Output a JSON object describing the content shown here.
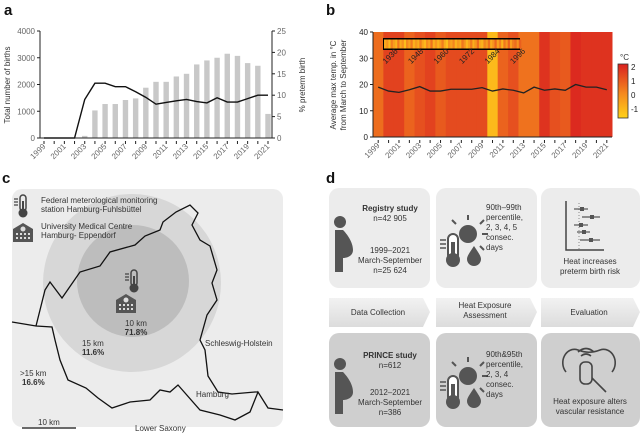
{
  "panels": {
    "a": "a",
    "b": "b",
    "c": "c",
    "d": "d"
  },
  "chart_data": [
    {
      "type": "bar",
      "title": "",
      "xlabel": "",
      "ylabel": "Total number of births",
      "y2label": "% preterm birth",
      "categories": [
        "1999",
        "2000",
        "2001",
        "2002",
        "2003",
        "2004",
        "2005",
        "2006",
        "2007",
        "2008",
        "2009",
        "2010",
        "2011",
        "2012",
        "2013",
        "2014",
        "2015",
        "2016",
        "2017",
        "2018",
        "2019",
        "2020",
        "2021"
      ],
      "x_tick_labels": [
        "1999",
        "2001",
        "2003",
        "2005",
        "2007",
        "2009",
        "2011",
        "2013",
        "2015",
        "2017",
        "2019",
        "2021"
      ],
      "ylim": [
        0,
        4000
      ],
      "yticks": [
        "0",
        "1000",
        "2000",
        "3000",
        "4000"
      ],
      "y2lim": [
        0,
        25
      ],
      "y2ticks": [
        "0",
        "5",
        "10",
        "15",
        "20",
        "25"
      ],
      "series": [
        {
          "name": "Total number of births",
          "type": "bar",
          "color": "#c8c8c8",
          "values": [
            0,
            0,
            0,
            0,
            80,
            1030,
            1270,
            1270,
            1420,
            1480,
            1880,
            2100,
            2100,
            2300,
            2400,
            2750,
            2900,
            3000,
            3150,
            3070,
            2800,
            2700,
            900
          ]
        },
        {
          "name": "% preterm birth",
          "type": "line",
          "axis": "right",
          "color": "#111111",
          "values": [
            0,
            0,
            0,
            0,
            9,
            12.8,
            12.8,
            12,
            12,
            10.8,
            9.5,
            7.9,
            8.3,
            8.7,
            9,
            8.5,
            8.2,
            9.4,
            8.4,
            8.4,
            9.2,
            10,
            10
          ]
        }
      ]
    },
    {
      "type": "heatmap",
      "ylabel": "Average max temp. in °C from March to September",
      "colorbar_label": "°C",
      "colorbar_ticks": [
        "2",
        "1",
        "0",
        "-1"
      ],
      "clim": [
        -1.8,
        2.2
      ],
      "categories": [
        "1999",
        "2000",
        "2001",
        "2002",
        "2003",
        "2004",
        "2005",
        "2006",
        "2007",
        "2008",
        "2009",
        "2010",
        "2011",
        "2012",
        "2013",
        "2014",
        "2015",
        "2016",
        "2017",
        "2018",
        "2019",
        "2020",
        "2021"
      ],
      "x_tick_labels": [
        "1999",
        "2001",
        "2003",
        "2005",
        "2007",
        "2009",
        "2011",
        "2013",
        "2015",
        "2017",
        "2019",
        "2021"
      ],
      "ylim": [
        0,
        40
      ],
      "yticks": [
        "0",
        "10",
        "20",
        "30",
        "40"
      ],
      "anomaly": [
        0.6,
        1.5,
        1.5,
        0.8,
        1.2,
        1.5,
        1.0,
        1.3,
        1.3,
        1.3,
        1.3,
        -1.2,
        0.8,
        1.2,
        0.5,
        0.5,
        1.8,
        1.2,
        1.0,
        2.0,
        1.8,
        1.8,
        1.8
      ],
      "temperature": [
        19,
        17.5,
        17,
        18,
        19.2,
        17.5,
        17.5,
        18.2,
        18.2,
        18.2,
        18.8,
        17.5,
        18.3,
        17.8,
        16.8,
        19,
        17.8,
        18.3,
        17.8,
        20,
        19,
        19,
        18
      ],
      "inset": {
        "tick_labels": [
          "1936",
          "1948",
          "1960",
          "1972",
          "1984",
          "1996"
        ],
        "anomaly": [
          -0.8,
          -0.3,
          -1.2,
          0.2,
          -0.5,
          -1,
          0.4,
          -0.8,
          -0.2,
          -1.3,
          0,
          -0.6,
          0.3,
          -1,
          -0.4,
          -0.9,
          0.2,
          -0.7,
          -1.2,
          -0.1,
          -0.6,
          0.5,
          -0.9,
          -0.3,
          -1,
          -0.5,
          0.3,
          -0.8,
          -1.3,
          -0.2,
          -0.6,
          0.1,
          -1,
          -0.4,
          -0.8,
          0.4,
          -0.2,
          -1.1,
          -0.5,
          0.3,
          -0.9,
          -0.3,
          0.6,
          -0.7,
          -1,
          0.1,
          -0.4,
          0.5,
          -0.8,
          -0.2,
          0.7,
          -0.6,
          0.2,
          -1,
          0.4,
          -0.3,
          0.8,
          -0.5,
          0.3,
          0.6,
          -0.2,
          0.9
        ]
      }
    }
  ],
  "map": {
    "legend": [
      {
        "icon": "thermometer-icon",
        "line1": "Federal meterological monitoring",
        "line2": "station Hamburg-Fuhlsbüttel"
      },
      {
        "icon": "hospital-icon",
        "line1": "University Medical Centre",
        "line2": "Hamburg- Eppendorf"
      }
    ],
    "zones": [
      {
        "dist": "10 km",
        "pct": "71.8%"
      },
      {
        "dist": "15 km",
        "pct": "11.6%"
      },
      {
        "dist": ">15 km",
        "pct": "16.6%"
      }
    ],
    "regions": [
      "Schleswig-Holstein",
      "Hamburg",
      "Lower Saxony"
    ],
    "scale": "10 km"
  },
  "flow": {
    "steps": [
      "Data Collection",
      "Heat Exposure",
      "Assessment",
      "Evaluation"
    ],
    "registry": {
      "title": "Registry study",
      "n": "n=42 905",
      "years": "1999–2021",
      "months": "March-September",
      "n2": "n=25 624",
      "exposure": [
        "90th–99th",
        "percentile,",
        "2, 3, 4, 5",
        "consec.",
        "days"
      ],
      "result": [
        "Heat increases",
        "preterm birth risk"
      ]
    },
    "prince": {
      "title": "PRINCE study",
      "n": "n=612",
      "years": "2012–2021",
      "months": "March-September",
      "n2": "n=386",
      "exposure": [
        "90th&95th",
        "percentile,",
        "2, 3, 4",
        "consec.",
        "days"
      ],
      "result": [
        "Heat exposure alters",
        "vascular resistance"
      ]
    }
  }
}
